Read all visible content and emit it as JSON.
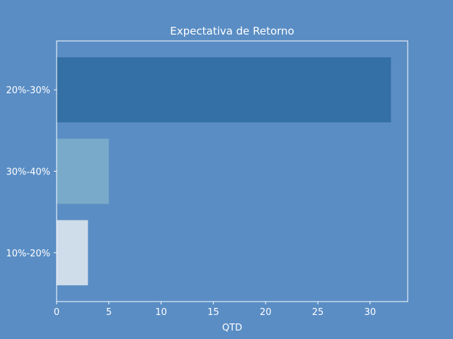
{
  "chart_data": {
    "type": "bar",
    "orientation": "horizontal",
    "title": "Expectativa de Retorno",
    "xlabel": "QTD",
    "ylabel": "",
    "categories": [
      "20%-30%",
      "30%-40%",
      "10%-20%"
    ],
    "values": [
      32,
      5,
      3
    ],
    "bar_colors": [
      "#3470a5",
      "#79aac9",
      "#cfdcea"
    ],
    "xlim": [
      0,
      33.6
    ],
    "xticks": [
      0,
      5,
      10,
      15,
      20,
      25,
      30
    ],
    "grid": false,
    "legend": "none"
  },
  "colors": {
    "background": "#5a8dc4",
    "axes_edge": "#ffffff",
    "text": "#ffffff"
  }
}
